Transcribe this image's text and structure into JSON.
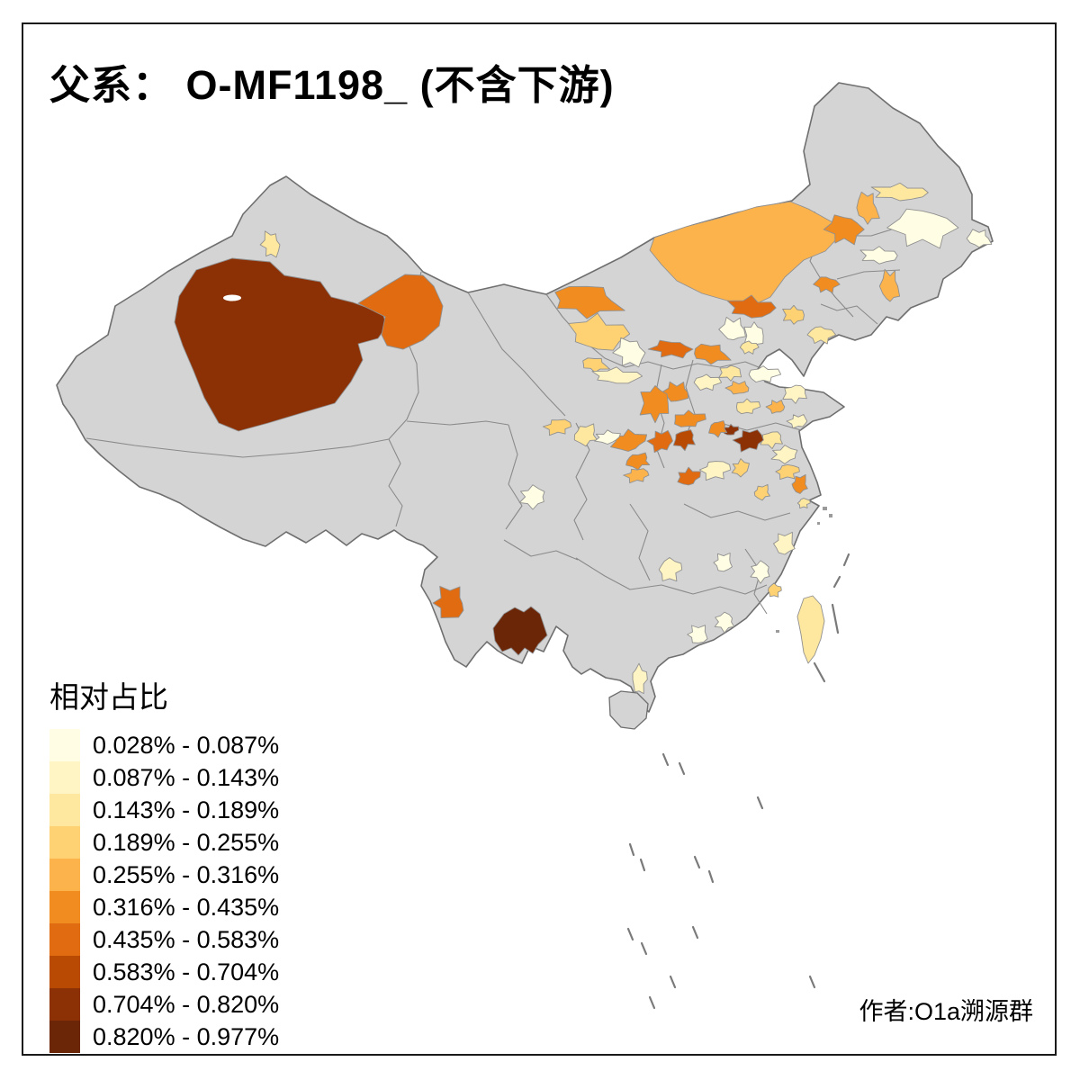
{
  "title": "父系： O-MF1198_ (不含下游)",
  "author": "作者:O1a溯源群",
  "legend": {
    "title": "相对占比",
    "classes": [
      {
        "label": "0.028% - 0.087%",
        "color": "#FFFDE3"
      },
      {
        "label": "0.087% - 0.143%",
        "color": "#FFF4C4"
      },
      {
        "label": "0.143% - 0.189%",
        "color": "#FEE79E"
      },
      {
        "label": "0.189% - 0.255%",
        "color": "#FED273"
      },
      {
        "label": "0.255% - 0.316%",
        "color": "#FDB34C"
      },
      {
        "label": "0.316% - 0.435%",
        "color": "#F18C20"
      },
      {
        "label": "0.435% - 0.583%",
        "color": "#E06B10"
      },
      {
        "label": "0.583% - 0.704%",
        "color": "#B84A04"
      },
      {
        "label": "0.704% - 0.820%",
        "color": "#8C3106"
      },
      {
        "label": "0.820% - 0.977%",
        "color": "#6B2507"
      }
    ]
  },
  "map": {
    "land_color": "#D4D4D4",
    "outline_color": "#6F6F6F",
    "district_border_color": "#909090",
    "sea_color": "#FFFFFF",
    "regions": {
      "s-xinjiang": 9,
      "hami": 7,
      "altay-spot": 3,
      "xilingol": 5,
      "bayannur": 6,
      "ordos": 4,
      "ningxia-cream": 1,
      "yinchuan": 4,
      "ningxia-yellow": 2,
      "hebei-strip-w": 7,
      "hebei-strip-e": 6,
      "chifeng": 7,
      "tongliao": 6,
      "daqing": 5,
      "qiqihar": 3,
      "harbin-cream": 1,
      "jiamusi-cream": 1,
      "jilin-cream": 1,
      "shenyang": 6,
      "liaoyang": 5,
      "chaoyang": 4,
      "liaodong": 3,
      "beijing-cream": 1,
      "chengde-cream": 1,
      "langfang": 3,
      "shanxi-mid": 6,
      "shanxi-n": 6,
      "hebei-s-yellow": 2,
      "jinan": 5,
      "sd-yellow-a": 3,
      "sd-cream-a": 1,
      "sd-orange": 5,
      "sd-yellow-b": 2,
      "sd-yellow-c": 3,
      "sd-cream-b": 2,
      "xuzhou": 3,
      "henan-nw": 6,
      "henan-7": 7,
      "henan-8": 8,
      "zhengzhou-9": 9,
      "zhoukou-9": 9,
      "kaifeng": 6,
      "nanyang": 7,
      "ankang": 5,
      "xian": 6,
      "qingyang": 6,
      "lanzhou": 4,
      "dingxi": 3,
      "gansu-cream": 1,
      "hubei-yellow": 2,
      "wuhan": 4,
      "hefei": 4,
      "anhui-yellow": 4,
      "nantong": 6,
      "jiangsu-cream": 2,
      "shanghai": 3,
      "zhejiang-yellow": 2,
      "chengdu-cream": 1,
      "chongqing-yellow": 2,
      "hunan-cream": 1,
      "jiangxi-cream": 1,
      "quanzhou": 4,
      "guangdong-cream-a": 1,
      "guangdong-cream-b": 1,
      "zhanjiang": 2,
      "yunnan-west": 7,
      "yunnan-dark": 10,
      "taiwan": 3
    }
  },
  "chart_data": {
    "type": "choropleth",
    "title": "父系： O-MF1198_ (不含下游)",
    "legend_title": "相对占比",
    "bins": [
      "0.028% - 0.087%",
      "0.087% - 0.143%",
      "0.143% - 0.189%",
      "0.189% - 0.255%",
      "0.255% - 0.316%",
      "0.316% - 0.435%",
      "0.435% - 0.583%",
      "0.583% - 0.704%",
      "0.704% - 0.820%",
      "0.820% - 0.977%"
    ],
    "palette": [
      "#FFFDE3",
      "#FFF4C4",
      "#FEE79E",
      "#FED273",
      "#FDB34C",
      "#F18C20",
      "#E06B10",
      "#B84A04",
      "#8C3106",
      "#6B2507"
    ],
    "value_range": [
      "0.028%",
      "0.977%"
    ],
    "legend_position": "bottom-left"
  }
}
